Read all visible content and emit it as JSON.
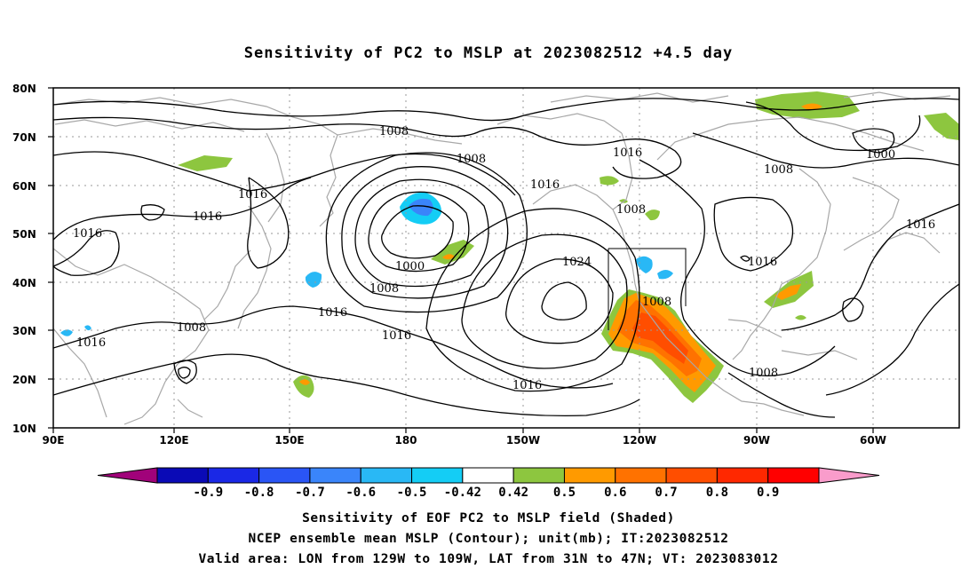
{
  "title": "Sensitivity of PC2 to MSLP at 2023082512 +4.5 day",
  "lat_labels": [
    "80N",
    "70N",
    "60N",
    "50N",
    "40N",
    "30N",
    "20N",
    "10N"
  ],
  "lon_labels": [
    "90E",
    "120E",
    "150E",
    "180",
    "150W",
    "120W",
    "90W",
    "60W"
  ],
  "contour_labels": {
    "l1008_a": "1008",
    "l1008_b": "1008",
    "l1016_a": "1016",
    "l1016_b": "1016",
    "l1016_c": "1016",
    "l1016_d": "1016",
    "l1000_a": "1000",
    "l1008_c": "1008",
    "l1016_e": "1016",
    "l1016_f": "1016",
    "l1016_g": "1016",
    "l1008_d": "1008",
    "l1024": "1024",
    "l1008_e": "1008",
    "l1016_h": "1016",
    "l1008_f": "1008",
    "l1000_b": "1000",
    "l1016_i": "1016",
    "l1016_j": "1016",
    "l1008_g": "1008",
    "l1016_k": "1016"
  },
  "colorbar": {
    "colors": [
      "#a1027a",
      "#0a0ab6",
      "#1a28e6",
      "#2a55f5",
      "#3a85fa",
      "#29b8f5",
      "#14cdf5",
      "#ffffff",
      "#8dc63f",
      "#ff9a00",
      "#ff7200",
      "#ff4e00",
      "#ff2800",
      "#ff0000",
      "#f99ccb"
    ],
    "labels": [
      "-0.9",
      "-0.8",
      "-0.7",
      "-0.6",
      "-0.5",
      "-0.42",
      "0.42",
      "0.5",
      "0.6",
      "0.7",
      "0.8",
      "0.9"
    ]
  },
  "captions": {
    "line1": "Sensitivity of EOF PC2 to MSLP field (Shaded)",
    "line2": "NCEP ensemble mean MSLP (Contour); unit(mb); IT:2023082512",
    "line3": "Valid area: LON from 129W to 109W, LAT from 31N to 47N; VT: 2023083012"
  }
}
